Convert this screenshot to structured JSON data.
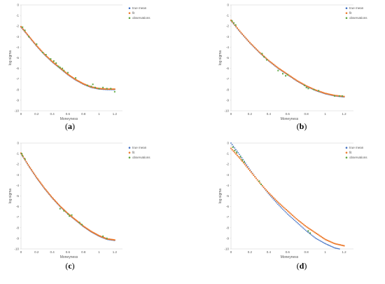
{
  "chart_data": [
    {
      "type": "scatter",
      "panel_label": "a",
      "xlabel": "Moneyness",
      "ylabel": "log sigma",
      "xlim": [
        0,
        1.3
      ],
      "ylim": [
        -10,
        0
      ],
      "xticks": [
        "0",
        "0.2",
        "0.4",
        "0.6",
        "0.8",
        "1",
        "1.2"
      ],
      "yticks": [
        "0",
        "-1",
        "-2",
        "-3",
        "-4",
        "-5",
        "-6",
        "-7",
        "-8",
        "-9",
        "-10"
      ],
      "legend_position": "top-right",
      "series": [
        {
          "name": "true mean",
          "color": "#4472c4",
          "style": "dots",
          "x": [
            0,
            0.1,
            0.2,
            0.3,
            0.4,
            0.5,
            0.6,
            0.7,
            0.8,
            0.9,
            1.0,
            1.1,
            1.2
          ],
          "y": [
            -2.1,
            -3.0,
            -3.9,
            -4.7,
            -5.4,
            -6.0,
            -6.6,
            -7.1,
            -7.5,
            -7.8,
            -7.95,
            -8.0,
            -8.0
          ]
        },
        {
          "name": "fit",
          "color": "#ed7d31",
          "style": "dots",
          "x": [
            0,
            0.1,
            0.2,
            0.3,
            0.4,
            0.5,
            0.6,
            0.7,
            0.8,
            0.9,
            1.0,
            1.1,
            1.2
          ],
          "y": [
            -2.05,
            -2.95,
            -3.85,
            -4.65,
            -5.35,
            -5.95,
            -6.55,
            -7.05,
            -7.45,
            -7.75,
            -7.9,
            -7.95,
            -7.95
          ]
        },
        {
          "name": "observations",
          "color": "#5fa843",
          "style": "dots",
          "x": [
            0.02,
            0.05,
            0.1,
            0.2,
            0.28,
            0.32,
            0.38,
            0.42,
            0.45,
            0.48,
            0.5,
            0.53,
            0.55,
            0.6,
            0.7,
            0.85,
            0.9,
            0.92,
            0.95,
            1.0,
            1.05,
            1.1,
            1.15,
            1.2
          ],
          "y": [
            -2.1,
            -2.4,
            -3.0,
            -3.7,
            -4.5,
            -4.7,
            -5.1,
            -5.3,
            -5.5,
            -5.8,
            -5.9,
            -6.0,
            -6.2,
            -6.4,
            -6.9,
            -7.6,
            -7.7,
            -7.5,
            -7.8,
            -7.9,
            -7.8,
            -7.9,
            -7.9,
            -8.2
          ]
        }
      ]
    },
    {
      "type": "scatter",
      "panel_label": "b",
      "xlabel": "Moneyness",
      "ylabel": "log sigma",
      "xlim": [
        0,
        1.3
      ],
      "ylim": [
        -10,
        0
      ],
      "xticks": [
        "0",
        "0.2",
        "0.4",
        "0.6",
        "0.8",
        "1",
        "1.2"
      ],
      "yticks": [
        "0",
        "-1",
        "-2",
        "-3",
        "-4",
        "-5",
        "-6",
        "-7",
        "-8",
        "-9",
        "-10"
      ],
      "legend_position": "top-right",
      "series": [
        {
          "name": "true mean",
          "color": "#4472c4",
          "style": "dots",
          "x": [
            0,
            0.1,
            0.2,
            0.3,
            0.4,
            0.5,
            0.6,
            0.7,
            0.8,
            0.9,
            1.0,
            1.1,
            1.2
          ],
          "y": [
            -1.5,
            -2.6,
            -3.6,
            -4.5,
            -5.3,
            -6.0,
            -6.6,
            -7.2,
            -7.7,
            -8.1,
            -8.4,
            -8.6,
            -8.7
          ]
        },
        {
          "name": "fit",
          "color": "#ed7d31",
          "style": "dots",
          "x": [
            0,
            0.1,
            0.2,
            0.3,
            0.4,
            0.5,
            0.6,
            0.7,
            0.8,
            0.9,
            1.0,
            1.1,
            1.2
          ],
          "y": [
            -1.45,
            -2.55,
            -3.55,
            -4.45,
            -5.25,
            -5.95,
            -6.55,
            -7.15,
            -7.65,
            -8.05,
            -8.35,
            -8.55,
            -8.65
          ]
        },
        {
          "name": "observations",
          "color": "#5fa843",
          "style": "dots",
          "x": [
            0.01,
            0.03,
            0.05,
            0.33,
            0.35,
            0.38,
            0.5,
            0.55,
            0.58,
            0.6,
            0.78,
            0.8,
            0.82,
            0.88,
            0.93,
            1.1,
            1.15,
            1.18
          ],
          "y": [
            -1.5,
            -1.7,
            -1.9,
            -4.6,
            -4.9,
            -5.2,
            -6.2,
            -6.5,
            -6.7,
            -6.6,
            -7.6,
            -7.8,
            -7.9,
            -8.0,
            -8.1,
            -8.6,
            -8.6,
            -8.6
          ]
        }
      ]
    },
    {
      "type": "scatter",
      "panel_label": "c",
      "xlabel": "Moneyness",
      "ylabel": "log sigma",
      "xlim": [
        0,
        1.3
      ],
      "ylim": [
        -10,
        0
      ],
      "xticks": [
        "0",
        "0.2",
        "0.4",
        "0.6",
        "0.8",
        "1",
        "1.2"
      ],
      "yticks": [
        "0",
        "-1",
        "-2",
        "-3",
        "-4",
        "-5",
        "-6",
        "-7",
        "-8",
        "-9",
        "-10"
      ],
      "legend_position": "top-right",
      "series": [
        {
          "name": "true mean",
          "color": "#4472c4",
          "style": "dots",
          "x": [
            0,
            0.1,
            0.2,
            0.3,
            0.4,
            0.5,
            0.6,
            0.7,
            0.8,
            0.9,
            1.0,
            1.1,
            1.2
          ],
          "y": [
            -1.0,
            -2.2,
            -3.3,
            -4.3,
            -5.2,
            -6.0,
            -6.7,
            -7.3,
            -7.9,
            -8.4,
            -8.8,
            -9.1,
            -9.2
          ]
        },
        {
          "name": "fit",
          "color": "#ed7d31",
          "style": "dots",
          "x": [
            0,
            0.1,
            0.2,
            0.3,
            0.4,
            0.5,
            0.6,
            0.7,
            0.8,
            0.9,
            1.0,
            1.1,
            1.2
          ],
          "y": [
            -0.95,
            -2.15,
            -3.25,
            -4.25,
            -5.15,
            -5.95,
            -6.65,
            -7.25,
            -7.85,
            -8.35,
            -8.75,
            -9.05,
            -9.15
          ]
        },
        {
          "name": "observations",
          "color": "#5fa843",
          "style": "dots",
          "x": [
            0.01,
            0.02,
            0.05,
            0.5,
            0.55,
            0.6,
            0.62,
            0.65,
            0.75,
            0.78,
            1.05,
            1.1
          ],
          "y": [
            -1.0,
            -1.2,
            -1.5,
            -6.2,
            -6.4,
            -6.7,
            -6.9,
            -6.8,
            -7.5,
            -7.7,
            -8.8,
            -9.0
          ]
        }
      ]
    },
    {
      "type": "scatter",
      "panel_label": "d",
      "xlabel": "Moneyness",
      "ylabel": "log sigma",
      "xlim": [
        0,
        1.3
      ],
      "ylim": [
        -10,
        0
      ],
      "xticks": [
        "0",
        "0.2",
        "0.4",
        "0.6",
        "0.8",
        "1",
        "1.2"
      ],
      "yticks": [
        "0",
        "-1",
        "-2",
        "-3",
        "-4",
        "-5",
        "-6",
        "-7",
        "-8",
        "-9",
        "-10"
      ],
      "legend_position": "top-right",
      "series": [
        {
          "name": "true mean",
          "color": "#4472c4",
          "style": "dots",
          "x": [
            0,
            0.05,
            0.1,
            0.2,
            0.3,
            0.4,
            0.5,
            0.6,
            0.7,
            0.8,
            0.9,
            1.0,
            1.1,
            1.15
          ],
          "y": [
            0.0,
            -0.6,
            -1.2,
            -2.5,
            -3.7,
            -4.8,
            -5.8,
            -6.7,
            -7.5,
            -8.3,
            -9.0,
            -9.5,
            -9.9,
            -10.0
          ]
        },
        {
          "name": "fit",
          "color": "#ed7d31",
          "style": "dots",
          "x": [
            0,
            0.1,
            0.2,
            0.3,
            0.4,
            0.5,
            0.6,
            0.7,
            0.8,
            0.9,
            1.0,
            1.1,
            1.2
          ],
          "y": [
            -0.5,
            -1.5,
            -2.6,
            -3.7,
            -4.7,
            -5.6,
            -6.4,
            -7.2,
            -7.9,
            -8.5,
            -9.1,
            -9.5,
            -9.7
          ]
        },
        {
          "name": "observations",
          "color": "#5fa843",
          "style": "dots",
          "x": [
            0.02,
            0.04,
            0.06,
            0.1,
            0.12,
            0.14,
            0.3,
            0.32,
            0.82,
            0.84
          ],
          "y": [
            -0.4,
            -0.7,
            -0.9,
            -1.3,
            -1.6,
            -1.8,
            -3.6,
            -3.9,
            -8.3,
            -8.5
          ]
        }
      ]
    }
  ]
}
